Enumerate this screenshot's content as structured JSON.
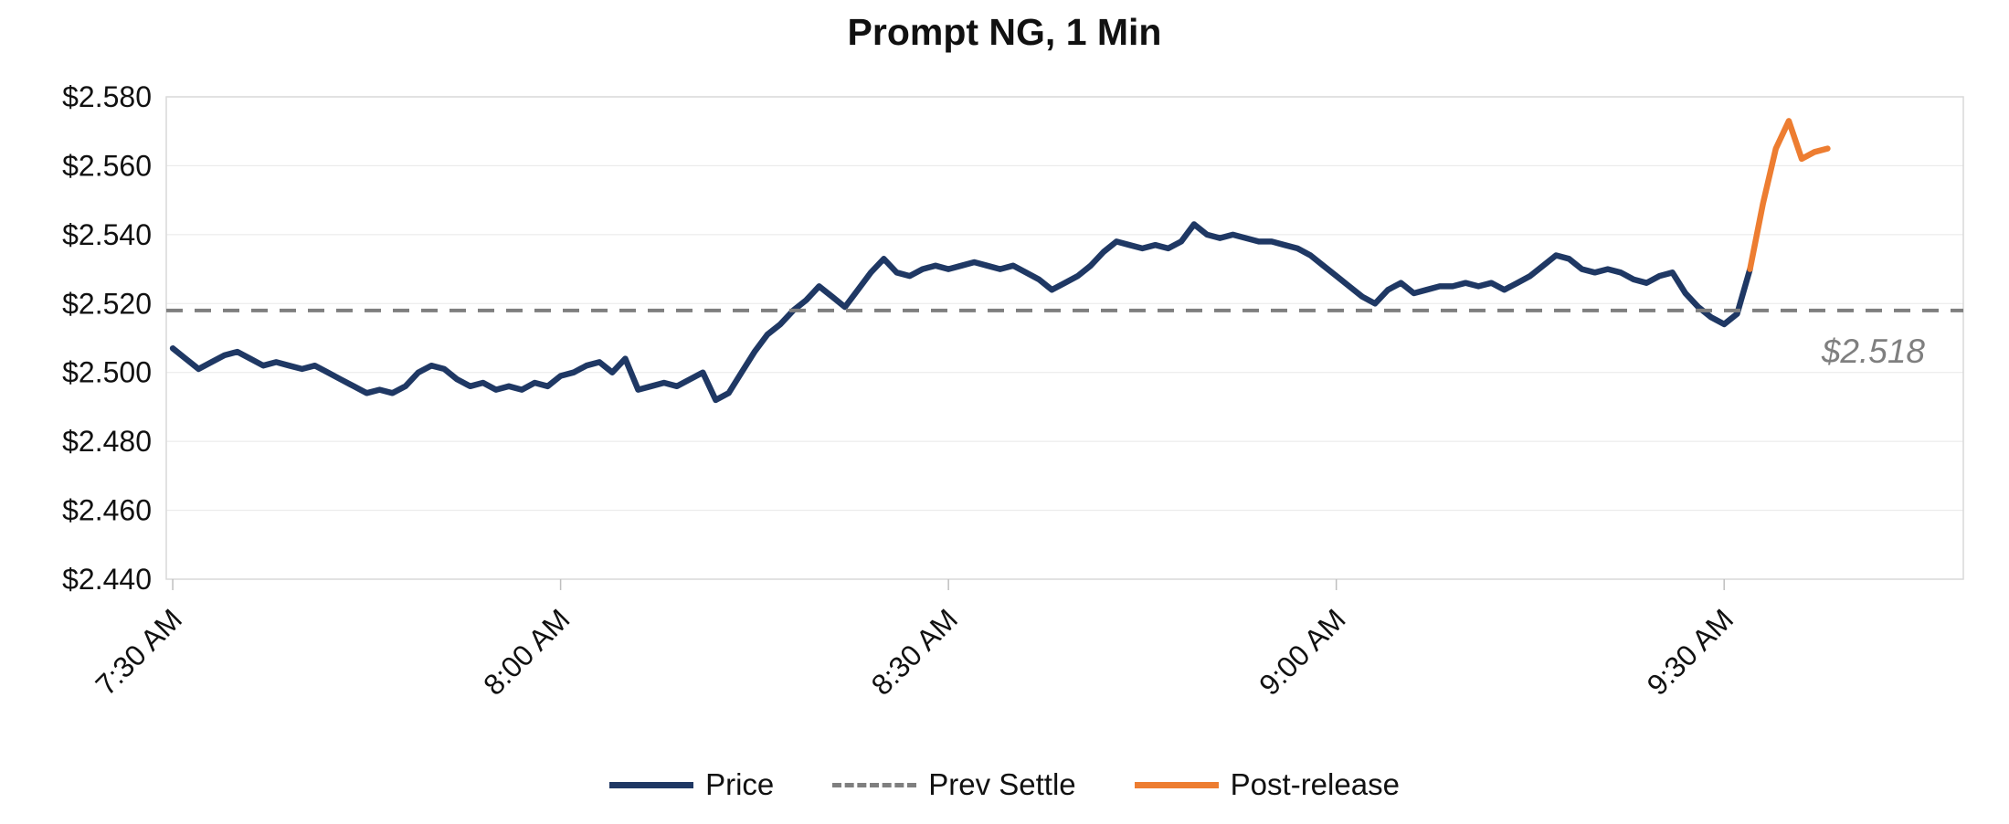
{
  "chart_data": {
    "type": "line",
    "title": "Prompt NG, 1 Min",
    "x_axis": {
      "tick_times": [
        "7:30",
        "8:00",
        "8:30",
        "9:00",
        "9:30"
      ],
      "tick_labels": [
        "7:30 AM",
        "8:00 AM",
        "8:30 AM",
        "9:00 AM",
        "9:30 AM"
      ]
    },
    "y_axis": {
      "min": 2.44,
      "max": 2.58,
      "step": 0.02,
      "tick_labels": [
        "$2.440",
        "$2.460",
        "$2.480",
        "$2.500",
        "$2.520",
        "$2.540",
        "$2.560",
        "$2.580"
      ]
    },
    "grid": "horizontal",
    "legend_position": "bottom",
    "series": [
      {
        "name": "Price",
        "type": "line",
        "color": "#1F3864",
        "start_time": "7:30",
        "interval_minutes": 1,
        "values": [
          2.507,
          2.504,
          2.501,
          2.503,
          2.505,
          2.506,
          2.504,
          2.502,
          2.503,
          2.502,
          2.501,
          2.502,
          2.5,
          2.498,
          2.496,
          2.494,
          2.495,
          2.494,
          2.496,
          2.5,
          2.502,
          2.501,
          2.498,
          2.496,
          2.497,
          2.495,
          2.496,
          2.495,
          2.497,
          2.496,
          2.499,
          2.5,
          2.502,
          2.503,
          2.5,
          2.504,
          2.495,
          2.496,
          2.497,
          2.496,
          2.498,
          2.5,
          2.492,
          2.494,
          2.5,
          2.506,
          2.511,
          2.514,
          2.518,
          2.521,
          2.525,
          2.522,
          2.519,
          2.524,
          2.529,
          2.533,
          2.529,
          2.528,
          2.53,
          2.531,
          2.53,
          2.531,
          2.532,
          2.531,
          2.53,
          2.531,
          2.529,
          2.527,
          2.524,
          2.526,
          2.528,
          2.531,
          2.535,
          2.538,
          2.537,
          2.536,
          2.537,
          2.536,
          2.538,
          2.543,
          2.54,
          2.539,
          2.54,
          2.539,
          2.538,
          2.538,
          2.537,
          2.536,
          2.534,
          2.531,
          2.528,
          2.525,
          2.522,
          2.52,
          2.524,
          2.526,
          2.523,
          2.524,
          2.525,
          2.525,
          2.526,
          2.525,
          2.526,
          2.524,
          2.526,
          2.528,
          2.531,
          2.534,
          2.533,
          2.53,
          2.529,
          2.53,
          2.529,
          2.527,
          2.526,
          2.528,
          2.529,
          2.523,
          2.519,
          2.516,
          2.514,
          2.517,
          2.53
        ]
      },
      {
        "name": "Prev Settle",
        "type": "hline",
        "color": "#7F7F7F",
        "dash": true,
        "value": 2.518
      },
      {
        "name": "Post-release",
        "type": "line",
        "color": "#ED7D31",
        "start_time": "9:32",
        "interval_minutes": 1,
        "values": [
          2.53,
          2.549,
          2.565,
          2.573,
          2.562,
          2.564,
          2.565
        ]
      }
    ],
    "annotation": {
      "text": "$2.518"
    }
  }
}
